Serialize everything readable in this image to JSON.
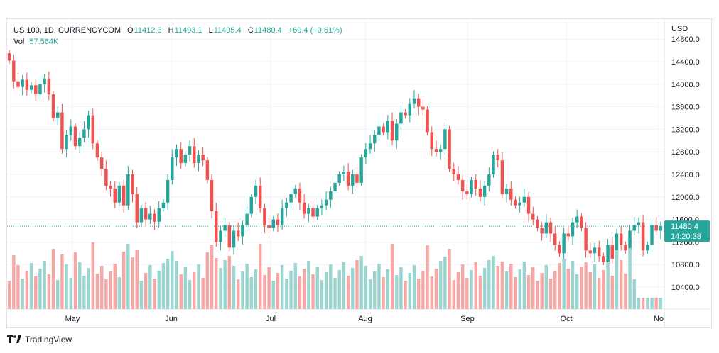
{
  "header": {
    "symbol": "US 100, 1D, CURRENCYCOM",
    "open_label": "O",
    "open": "11412.3",
    "high_label": "H",
    "high": "11493.1",
    "low_label": "L",
    "low": "11405.4",
    "close_label": "C",
    "close": "11480.4",
    "change": "+69.4 (+0.61%)",
    "vol_label": "Vol",
    "vol": "57.564K"
  },
  "price_badge": {
    "price": "11480.4",
    "countdown": "14:20:38"
  },
  "branding": "TradingView",
  "colors": {
    "up": "#26a69a",
    "down": "#ef5350",
    "up_vol": "#9ad5cf",
    "down_vol": "#f6a8a6"
  },
  "chart_data": {
    "type": "candlestick",
    "currency": "USD",
    "y_ticks": [
      "14800.0",
      "14400.0",
      "14000.0",
      "13600.0",
      "13200.0",
      "12800.0",
      "12400.0",
      "12000.0",
      "11600.0",
      "11200.0",
      "10800.0",
      "10400.0"
    ],
    "x_ticks": [
      "May",
      "Jun",
      "Jul",
      "Aug",
      "Sep",
      "Oct",
      "No"
    ],
    "ylim": [
      10000,
      14800
    ],
    "last_price": 11480.4,
    "closes": [
      14420,
      14050,
      13950,
      14080,
      13900,
      13980,
      13820,
      14000,
      14100,
      13820,
      13400,
      13500,
      12850,
      13100,
      13250,
      12900,
      13050,
      13200,
      13450,
      12950,
      12700,
      12500,
      12200,
      12150,
      11900,
      12200,
      11850,
      12400,
      12050,
      11550,
      11800,
      11600,
      11700,
      11560,
      11800,
      11900,
      12300,
      12700,
      12850,
      12600,
      12750,
      12900,
      12600,
      12750,
      12650,
      12300,
      11750,
      11200,
      11400,
      11500,
      11100,
      11400,
      11300,
      11500,
      11700,
      12000,
      12200,
      11800,
      11500,
      11450,
      11600,
      11500,
      11800,
      11900,
      12050,
      12150,
      11900,
      11700,
      11800,
      11650,
      11800,
      11850,
      11950,
      12100,
      12250,
      12400,
      12450,
      12200,
      12400,
      12250,
      12700,
      12850,
      12950,
      13100,
      13250,
      13150,
      13350,
      13000,
      13300,
      13500,
      13450,
      13650,
      13750,
      13600,
      13550,
      13150,
      12850,
      12800,
      12850,
      13200,
      12500,
      12400,
      12300,
      12100,
      12050,
      12300,
      12150,
      12000,
      12200,
      12400,
      12750,
      12650,
      12050,
      12150,
      11950,
      11850,
      11900,
      12000,
      11700,
      11600,
      11450,
      11350,
      11550,
      11350,
      11150,
      11000,
      11350,
      11300,
      11550,
      11650,
      11450,
      11050,
      11000,
      11100,
      10950,
      10850,
      11150,
      10900,
      11350,
      11150,
      11050,
      11400,
      11500,
      11550,
      11050,
      11150,
      11500,
      11400,
      11480
    ]
  }
}
